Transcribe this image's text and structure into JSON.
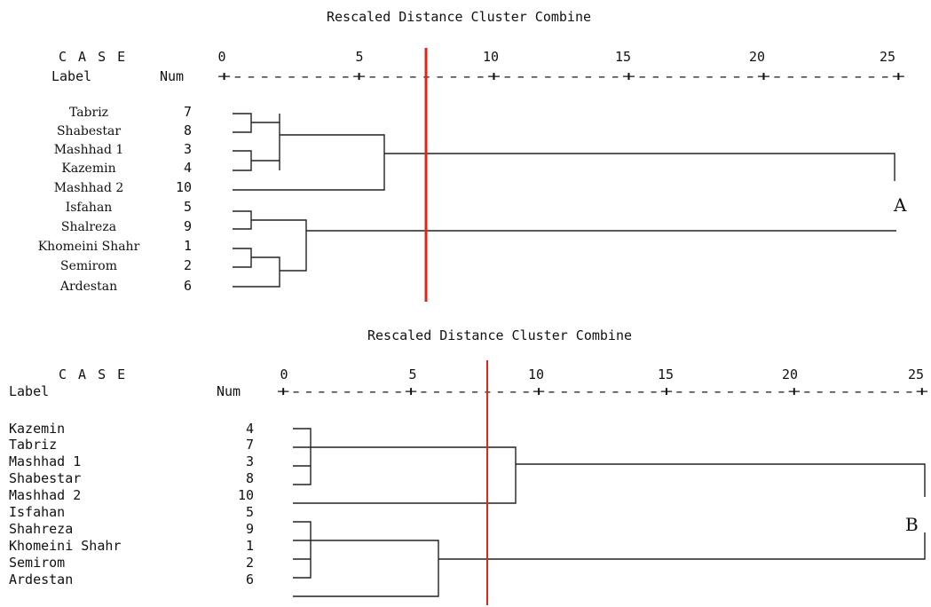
{
  "dendrograms": [
    {
      "id": "A",
      "title": "Rescaled Distance Cluster Combine",
      "header_case": "C A S E",
      "header_label": "Label",
      "header_num": "Num",
      "ticks": [
        "0",
        "5",
        "10",
        "15",
        "20",
        "25"
      ],
      "axis_rule": "+---------+---------+---------+---------+---------+",
      "panel_label": "A",
      "cut_distance": 7.5,
      "cut_color": "#e3241b",
      "cases": [
        {
          "label": "Tabriz",
          "num": "7"
        },
        {
          "label": "Shabestar",
          "num": "8"
        },
        {
          "label": "Mashhad 1",
          "num": "3"
        },
        {
          "label": "Kazemin",
          "num": "4"
        },
        {
          "label": "Mashhad 2",
          "num": "10"
        },
        {
          "label": "Isfahan",
          "num": "5"
        },
        {
          "label": "Shalreza",
          "num": "9"
        },
        {
          "label": "Khomeini Shahr",
          "num": "1"
        },
        {
          "label": "Semirom",
          "num": "2"
        },
        {
          "label": "Ardestan",
          "num": "6"
        }
      ]
    },
    {
      "id": "B",
      "title": "Rescaled Distance Cluster Combine",
      "header_case": "C A S E",
      "header_label": "Label",
      "header_num": "Num",
      "ticks": [
        "0",
        "5",
        "10",
        "15",
        "20",
        "25"
      ],
      "axis_rule": "+---------+---------+---------+---------+---------+",
      "panel_label": "B",
      "cut_distance": 8.0,
      "cut_color": "#e3241b",
      "cases": [
        {
          "label": "Kazemin",
          "num": "4"
        },
        {
          "label": "Tabriz",
          "num": "7"
        },
        {
          "label": "Mashhad 1",
          "num": "3"
        },
        {
          "label": "Shabestar",
          "num": "8"
        },
        {
          "label": "Mashhad 2",
          "num": "10"
        },
        {
          "label": "Isfahan",
          "num": "5"
        },
        {
          "label": "Shahreza",
          "num": "9"
        },
        {
          "label": "Khomeini Shahr",
          "num": "1"
        },
        {
          "label": "Semirom",
          "num": "2"
        },
        {
          "label": "Ardestan",
          "num": "6"
        }
      ]
    }
  ]
}
